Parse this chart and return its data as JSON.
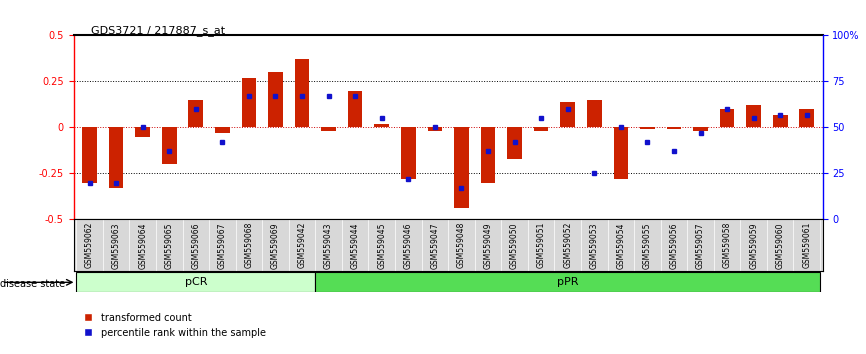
{
  "title": "GDS3721 / 217887_s_at",
  "samples": [
    "GSM559062",
    "GSM559063",
    "GSM559064",
    "GSM559065",
    "GSM559066",
    "GSM559067",
    "GSM559068",
    "GSM559069",
    "GSM559042",
    "GSM559043",
    "GSM559044",
    "GSM559045",
    "GSM559046",
    "GSM559047",
    "GSM559048",
    "GSM559049",
    "GSM559050",
    "GSM559051",
    "GSM559052",
    "GSM559053",
    "GSM559054",
    "GSM559055",
    "GSM559056",
    "GSM559057",
    "GSM559058",
    "GSM559059",
    "GSM559060",
    "GSM559061"
  ],
  "red_values": [
    -0.3,
    -0.33,
    -0.05,
    -0.2,
    0.15,
    -0.03,
    0.27,
    0.3,
    0.37,
    -0.02,
    0.2,
    0.02,
    -0.28,
    -0.02,
    -0.44,
    -0.3,
    -0.17,
    -0.02,
    0.14,
    0.15,
    -0.28,
    -0.01,
    -0.01,
    -0.02,
    0.1,
    0.12,
    0.07,
    0.1
  ],
  "blue_values": [
    20,
    20,
    50,
    37,
    60,
    42,
    67,
    67,
    67,
    67,
    67,
    55,
    22,
    50,
    17,
    37,
    42,
    55,
    60,
    25,
    50,
    42,
    37,
    47,
    60,
    55,
    57,
    57
  ],
  "pcr_count": 9,
  "ylim": [
    -0.5,
    0.5
  ],
  "pcr_color_light": "#ccffcc",
  "ppr_color": "#55dd55",
  "bar_color": "#cc2200",
  "blue_color": "#1111cc",
  "bar_width": 0.55
}
